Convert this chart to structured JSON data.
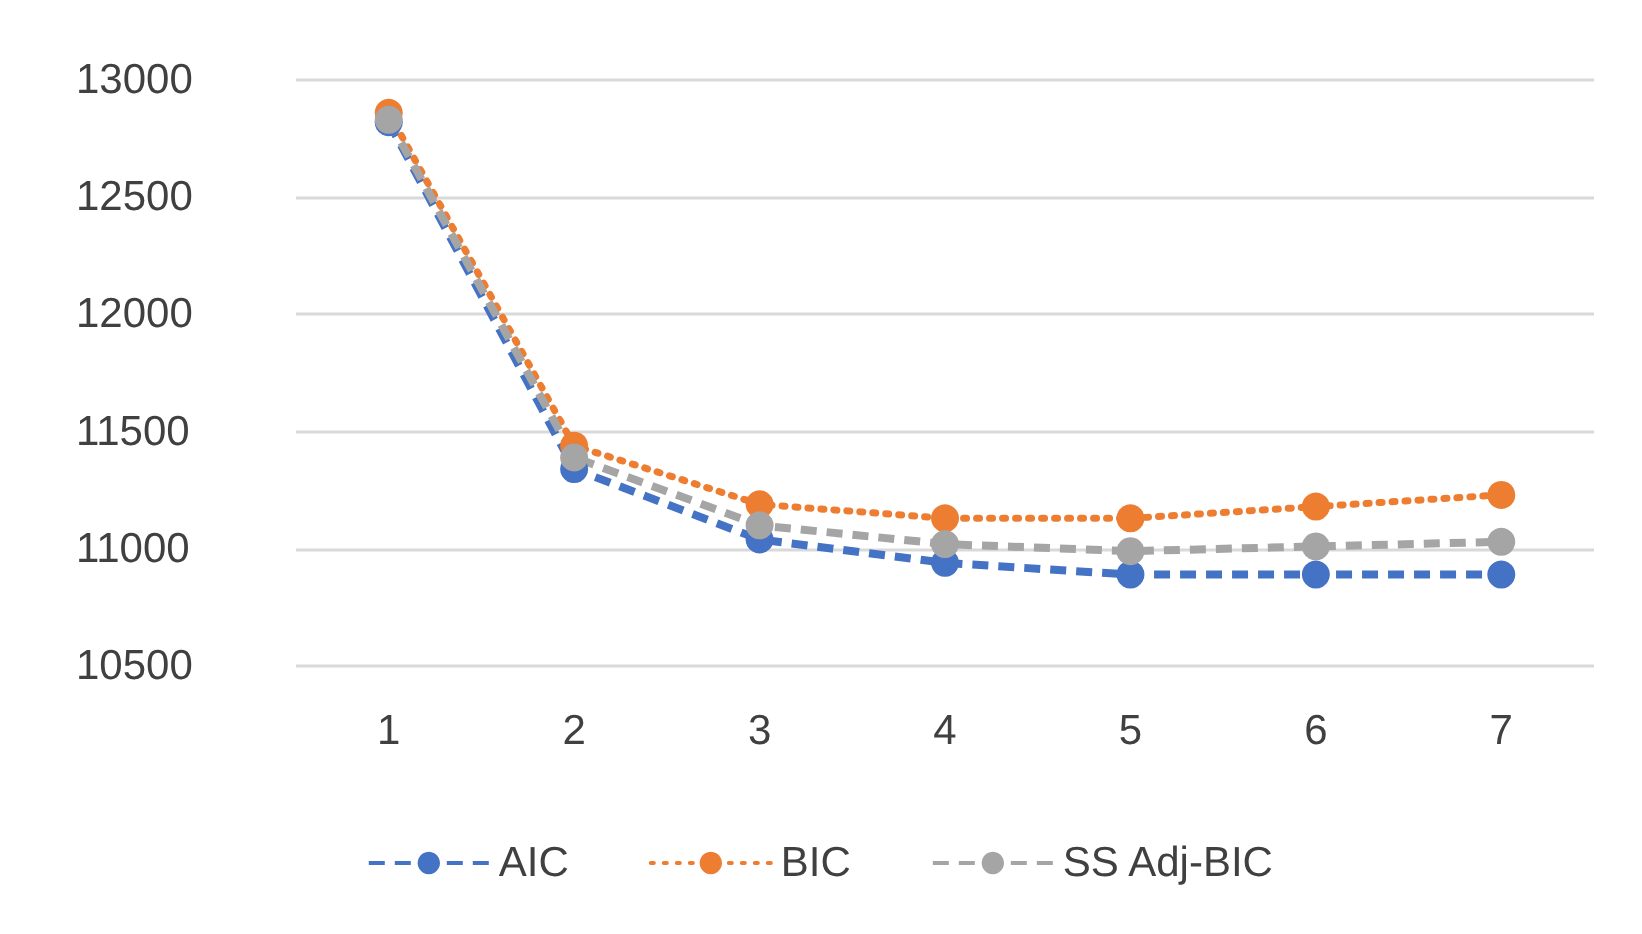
{
  "chart_data": {
    "type": "line",
    "categories": [
      "1",
      "2",
      "3",
      "4",
      "5",
      "6",
      "7"
    ],
    "series": [
      {
        "name": "AIC",
        "color": "#4472c4",
        "line_style": "dashed",
        "values": [
          12820,
          11340,
          11040,
          10940,
          10890,
          10890,
          10890
        ]
      },
      {
        "name": "BIC",
        "color": "#ed7d31",
        "line_style": "dotted",
        "values": [
          12860,
          11440,
          11190,
          11130,
          11130,
          11180,
          11230
        ]
      },
      {
        "name": "SS Adj-BIC",
        "color": "#a5a5a5",
        "line_style": "dashed",
        "values": [
          12830,
          11390,
          11100,
          11020,
          10990,
          11010,
          11030
        ]
      }
    ],
    "ylim": [
      10500,
      13000
    ],
    "yticks": [
      10500,
      11000,
      11500,
      12000,
      12500,
      13000
    ],
    "grid": "y",
    "legend": "bottom",
    "marker": "circle"
  }
}
